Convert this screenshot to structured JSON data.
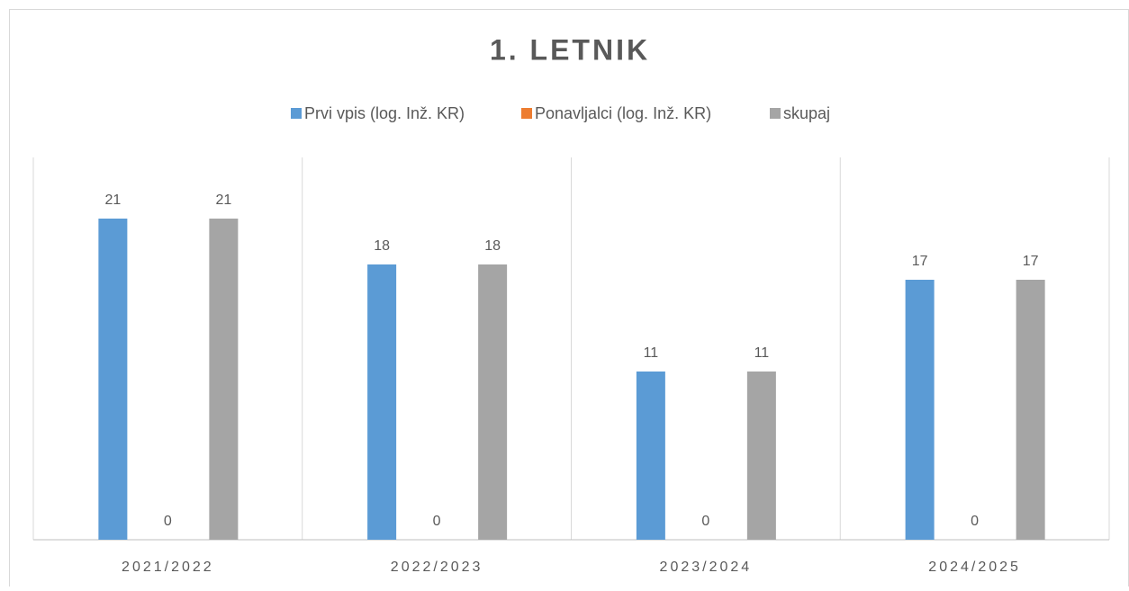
{
  "chart_data": {
    "type": "bar",
    "title": "1. LETNIK",
    "categories": [
      "2021/2022",
      "2022/2023",
      "2023/2024",
      "2024/2025"
    ],
    "series": [
      {
        "name": "Prvi vpis (log. Inž. KR)",
        "color": "#5b9bd5",
        "values": [
          21,
          18,
          11,
          17
        ]
      },
      {
        "name": "Ponavljalci (log. Inž. KR)",
        "color": "#ed7d31",
        "values": [
          0,
          0,
          0,
          0
        ]
      },
      {
        "name": "skupaj",
        "color": "#a5a5a5",
        "values": [
          21,
          18,
          11,
          17
        ]
      }
    ],
    "ylim": [
      0,
      25
    ],
    "legend": "top"
  }
}
